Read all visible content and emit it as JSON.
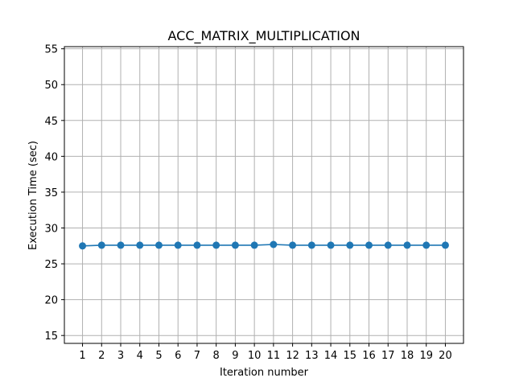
{
  "chart_data": {
    "type": "line",
    "title": "ACC_MATRIX_MULTIPLICATION",
    "xlabel": "Iteration number",
    "ylabel": "Execution Time (sec)",
    "x": [
      1,
      2,
      3,
      4,
      5,
      6,
      7,
      8,
      9,
      10,
      11,
      12,
      13,
      14,
      15,
      16,
      17,
      18,
      19,
      20
    ],
    "x_tick_labels": [
      "1",
      "2",
      "3",
      "4",
      "5",
      "6",
      "7",
      "8",
      "9",
      "10",
      "11",
      "12",
      "13",
      "14",
      "15",
      "16",
      "17",
      "18",
      "19",
      "20"
    ],
    "xlim": [
      0.05,
      20.95
    ],
    "ylim": [
      13.9,
      55.3
    ],
    "y_ticks": [
      15,
      20,
      25,
      30,
      35,
      40,
      45,
      50,
      55
    ],
    "y_tick_labels": [
      "15",
      "20",
      "25",
      "30",
      "35",
      "40",
      "45",
      "50",
      "55"
    ],
    "series": [
      {
        "values": [
          27.5,
          27.6,
          27.6,
          27.6,
          27.6,
          27.6,
          27.6,
          27.6,
          27.6,
          27.6,
          27.7,
          27.6,
          27.6,
          27.6,
          27.6,
          27.6,
          27.6,
          27.6,
          27.6,
          27.6
        ],
        "color": "#1f77b4",
        "marker": "circle"
      }
    ],
    "grid": true,
    "legend": "none"
  }
}
